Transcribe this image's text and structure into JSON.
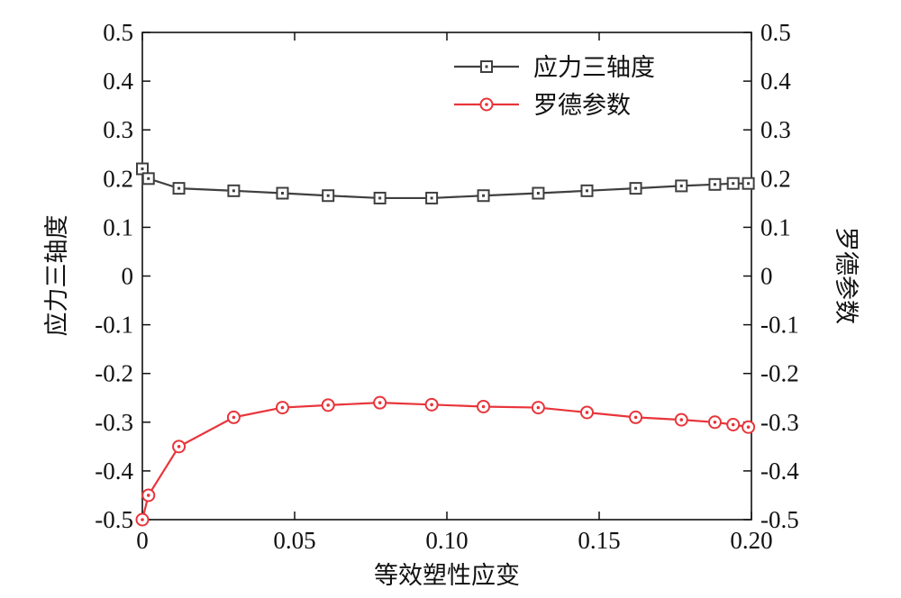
{
  "chart_data": {
    "type": "line",
    "xlabel": "等效塑性应变",
    "ylabel_left": "应力三轴度",
    "ylabel_right": "罗德参数",
    "xlim": [
      0,
      0.2
    ],
    "ylim": [
      -0.5,
      0.5
    ],
    "x_ticks": [
      "0",
      "0.05",
      "0.10",
      "0.15",
      "0.20"
    ],
    "y_ticks": [
      "0.5",
      "0.4",
      "0.3",
      "0.2",
      "0.1",
      "0",
      "-0.1",
      "-0.2",
      "-0.3",
      "-0.4",
      "-0.5"
    ],
    "legend_position": "top-right",
    "grid": false,
    "series": [
      {
        "name": "应力三轴度",
        "axis": "left",
        "color": "#3f3f3f",
        "marker": "square",
        "x": [
          0.0,
          0.002,
          0.012,
          0.03,
          0.046,
          0.061,
          0.078,
          0.095,
          0.112,
          0.13,
          0.146,
          0.162,
          0.177,
          0.188,
          0.194,
          0.199
        ],
        "y": [
          0.22,
          0.2,
          0.18,
          0.175,
          0.17,
          0.165,
          0.16,
          0.16,
          0.165,
          0.17,
          0.175,
          0.18,
          0.185,
          0.188,
          0.19,
          0.19
        ]
      },
      {
        "name": "罗德参数",
        "axis": "right",
        "color": "#e8353b",
        "marker": "circle",
        "x": [
          0.0,
          0.002,
          0.012,
          0.03,
          0.046,
          0.061,
          0.078,
          0.095,
          0.112,
          0.13,
          0.146,
          0.162,
          0.177,
          0.188,
          0.194,
          0.199
        ],
        "y": [
          -0.5,
          -0.45,
          -0.35,
          -0.29,
          -0.27,
          -0.265,
          -0.26,
          -0.264,
          -0.268,
          -0.27,
          -0.28,
          -0.29,
          -0.295,
          -0.3,
          -0.305,
          -0.31
        ]
      }
    ]
  }
}
